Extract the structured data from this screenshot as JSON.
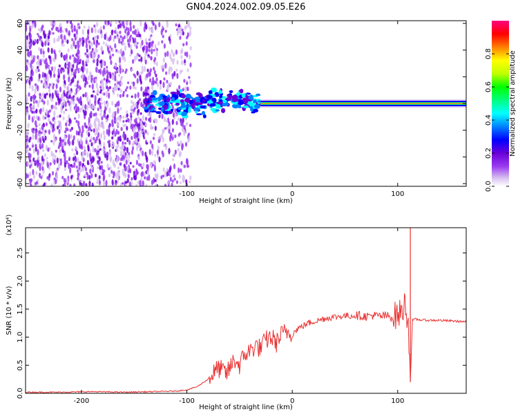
{
  "title": "GN04.2024.002.09.05.E26",
  "chart_data": [
    {
      "type": "heatmap",
      "xlabel": "Height of straight line (km)",
      "ylabel": "Frequency (Hz)",
      "xlim": [
        -253,
        165
      ],
      "ylim": [
        -62,
        62
      ],
      "xticks": [
        -200,
        -100,
        0,
        100
      ],
      "yticks": [
        -60,
        -40,
        -20,
        0,
        20,
        40,
        60
      ],
      "colorbar": {
        "label": "Normalized spectral amplitude",
        "range": [
          0.0,
          1.0
        ],
        "ticks": [
          0.0,
          0.2,
          0.4,
          0.6,
          0.8
        ],
        "colors": [
          "#ffffff",
          "#d8c0f0",
          "#9a3cf0",
          "#6a00d8",
          "#0000ff",
          "#0080ff",
          "#00ffff",
          "#00ff80",
          "#00ff00",
          "#c0ff00",
          "#ffff00",
          "#ff8000",
          "#ff0000",
          "#ff0080"
        ]
      },
      "regions": [
        {
          "name": "noise",
          "x": [
            -253,
            -95
          ],
          "y": [
            -62,
            62
          ]
        },
        {
          "name": "transition",
          "x": [
            -140,
            -30
          ],
          "y": [
            -12,
            12
          ]
        },
        {
          "name": "signal band",
          "x": [
            -30,
            165
          ],
          "y": [
            -2,
            2
          ]
        }
      ]
    },
    {
      "type": "line",
      "xlabel": "Height of straight line (km)",
      "ylabel": "SNR (10 * v/v)",
      "y_multiplier": "(x10⁴)",
      "xlim": [
        -253,
        165
      ],
      "ylim": [
        0,
        2.95
      ],
      "xticks": [
        -200,
        -100,
        0,
        100
      ],
      "yticks": [
        0.0,
        0.5,
        1.0,
        1.5,
        2.0,
        2.5
      ],
      "color": "#e83030",
      "series": [
        {
          "x": [
            -253,
            -220,
            -190,
            -160,
            -130,
            -110,
            -100,
            -90,
            -80,
            -70,
            -62,
            -55,
            -50,
            -45,
            -40,
            -35,
            -30,
            -25,
            -20,
            -15,
            -10,
            -5,
            0,
            5,
            10,
            15,
            20,
            25,
            30,
            35,
            40,
            45,
            50,
            55,
            60,
            65,
            70,
            75,
            80,
            85,
            90,
            95,
            100,
            104,
            107,
            110,
            112,
            114,
            117,
            120,
            130,
            140,
            150,
            160,
            165
          ],
          "y": [
            0.02,
            0.02,
            0.03,
            0.02,
            0.03,
            0.04,
            0.06,
            0.12,
            0.25,
            0.45,
            0.35,
            0.6,
            0.5,
            0.7,
            0.75,
            0.85,
            0.8,
            0.95,
            1.0,
            0.9,
            1.05,
            1.1,
            1.05,
            1.15,
            1.2,
            1.25,
            1.28,
            1.3,
            1.33,
            1.35,
            1.36,
            1.37,
            1.38,
            1.38,
            1.39,
            1.38,
            1.37,
            1.39,
            1.38,
            1.37,
            1.38,
            1.36,
            1.4,
            1.45,
            1.6,
            1.3,
            0.2,
            1.3,
            1.32,
            1.31,
            1.3,
            1.3,
            1.29,
            1.28,
            1.27
          ]
        }
      ]
    }
  ]
}
